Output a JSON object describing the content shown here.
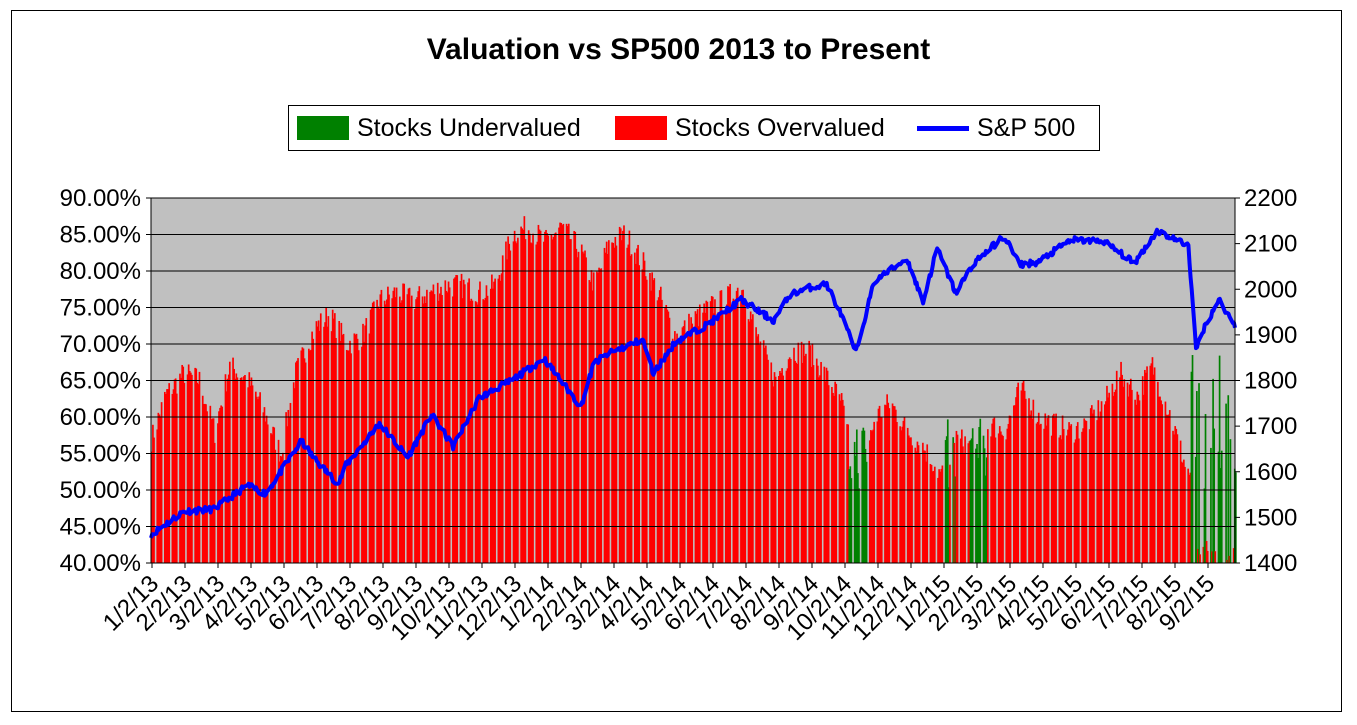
{
  "chart_data": {
    "type": "bar",
    "title": "Valuation vs SP500 2013 to Present",
    "legend_position": "top",
    "grid": true,
    "colors": {
      "undervalued": "#008000",
      "overvalued": "#ff0000",
      "sp500": "#0000ff",
      "plot_background": "#c0c0c0",
      "gridline": "#000000"
    },
    "series": [
      {
        "name": "Stocks Undervalued",
        "axis": "left",
        "kind": "bar"
      },
      {
        "name": "Stocks Overvalued",
        "axis": "left",
        "kind": "bar"
      },
      {
        "name": "S&P 500",
        "axis": "right",
        "kind": "line"
      }
    ],
    "y_left": {
      "range": [
        0.4,
        0.9
      ],
      "tick_labels": [
        "90.00%",
        "85.00%",
        "80.00%",
        "75.00%",
        "70.00%",
        "65.00%",
        "60.00%",
        "55.00%",
        "50.00%",
        "45.00%",
        "40.00%"
      ],
      "tick_values": [
        0.9,
        0.85,
        0.8,
        0.75,
        0.7,
        0.65,
        0.6,
        0.55,
        0.5,
        0.45,
        0.4
      ]
    },
    "y_right": {
      "range": [
        1400,
        2200
      ],
      "tick_labels": [
        "2200",
        "2100",
        "2000",
        "1900",
        "1800",
        "1700",
        "1600",
        "1500",
        "1400"
      ],
      "tick_values": [
        2200,
        2100,
        2000,
        1900,
        1800,
        1700,
        1600,
        1500,
        1400
      ]
    },
    "x_tick_labels": [
      "1/2/13",
      "2/2/13",
      "3/2/13",
      "4/2/13",
      "5/2/13",
      "6/2/13",
      "7/2/13",
      "8/2/13",
      "9/2/13",
      "10/2/13",
      "11/2/13",
      "12/2/13",
      "1/2/14",
      "2/2/14",
      "3/2/14",
      "4/2/14",
      "5/2/14",
      "6/2/14",
      "7/2/14",
      "8/2/14",
      "9/2/14",
      "10/2/14",
      "11/2/14",
      "12/2/14",
      "1/2/15",
      "2/2/15",
      "3/2/15",
      "4/2/15",
      "5/2/15",
      "6/2/15",
      "7/2/15",
      "8/2/15",
      "9/2/15"
    ],
    "x_domain": {
      "start": "2013-01-02",
      "end": "2015-09-30"
    },
    "valuation": {
      "dates": [
        "2013-01-02",
        "2013-01-15",
        "2013-02-01",
        "2013-02-15",
        "2013-03-01",
        "2013-03-15",
        "2013-04-01",
        "2013-04-15",
        "2013-05-01",
        "2013-05-15",
        "2013-06-01",
        "2013-06-15",
        "2013-07-01",
        "2013-07-15",
        "2013-08-01",
        "2013-08-15",
        "2013-09-01",
        "2013-09-15",
        "2013-10-01",
        "2013-10-15",
        "2013-11-01",
        "2013-11-15",
        "2013-12-01",
        "2013-12-15",
        "2014-01-01",
        "2014-01-15",
        "2014-02-01",
        "2014-02-15",
        "2014-03-01",
        "2014-03-15",
        "2014-04-01",
        "2014-04-15",
        "2014-05-01",
        "2014-05-15",
        "2014-06-01",
        "2014-06-15",
        "2014-07-01",
        "2014-07-15",
        "2014-08-01",
        "2014-08-15",
        "2014-09-01",
        "2014-09-15",
        "2014-10-01",
        "2014-10-10",
        "2014-10-20",
        "2014-11-01",
        "2014-11-15",
        "2014-12-01",
        "2014-12-15",
        "2015-01-01",
        "2015-01-15",
        "2015-02-01",
        "2015-02-15",
        "2015-03-01",
        "2015-03-15",
        "2015-04-01",
        "2015-04-15",
        "2015-05-01",
        "2015-05-15",
        "2015-06-01",
        "2015-06-15",
        "2015-07-01",
        "2015-07-15",
        "2015-08-01",
        "2015-08-15",
        "2015-08-25",
        "2015-09-01",
        "2015-09-15",
        "2015-09-30"
      ],
      "values": [
        0.57,
        0.63,
        0.66,
        0.65,
        0.58,
        0.67,
        0.65,
        0.61,
        0.55,
        0.66,
        0.72,
        0.74,
        0.7,
        0.71,
        0.76,
        0.77,
        0.76,
        0.77,
        0.78,
        0.78,
        0.77,
        0.78,
        0.85,
        0.86,
        0.84,
        0.86,
        0.83,
        0.78,
        0.84,
        0.85,
        0.81,
        0.77,
        0.71,
        0.73,
        0.75,
        0.76,
        0.78,
        0.71,
        0.65,
        0.69,
        0.69,
        0.66,
        0.62,
        0.55,
        0.52,
        0.6,
        0.62,
        0.58,
        0.56,
        0.52,
        0.57,
        0.56,
        0.59,
        0.58,
        0.64,
        0.6,
        0.59,
        0.58,
        0.59,
        0.62,
        0.66,
        0.63,
        0.67,
        0.6,
        0.53,
        0.51,
        0.47,
        0.42,
        0.41
      ]
    },
    "sp500": {
      "dates": [
        "2013-01-02",
        "2013-02-01",
        "2013-03-01",
        "2013-04-01",
        "2013-04-18",
        "2013-05-01",
        "2013-05-21",
        "2013-06-01",
        "2013-06-24",
        "2013-07-01",
        "2013-08-01",
        "2013-08-27",
        "2013-09-18",
        "2013-10-08",
        "2013-11-01",
        "2013-12-01",
        "2013-12-31",
        "2014-02-03",
        "2014-02-15",
        "2014-03-01",
        "2014-04-01",
        "2014-04-11",
        "2014-05-01",
        "2014-06-01",
        "2014-07-01",
        "2014-07-31",
        "2014-08-15",
        "2014-09-01",
        "2014-09-18",
        "2014-10-01",
        "2014-10-15",
        "2014-11-01",
        "2014-12-01",
        "2014-12-16",
        "2014-12-29",
        "2015-01-15",
        "2015-02-01",
        "2015-03-01",
        "2015-03-15",
        "2015-04-01",
        "2015-05-01",
        "2015-06-01",
        "2015-06-29",
        "2015-07-20",
        "2015-08-18",
        "2015-08-25",
        "2015-09-01",
        "2015-09-15",
        "2015-09-30"
      ],
      "values": [
        1462,
        1513,
        1518,
        1570,
        1552,
        1597,
        1667,
        1631,
        1573,
        1614,
        1706,
        1631,
        1725,
        1655,
        1762,
        1800,
        1848,
        1742,
        1838,
        1859,
        1890,
        1815,
        1884,
        1924,
        1977,
        1931,
        1988,
        2003,
        2011,
        1946,
        1862,
        2018,
        2067,
        1972,
        2090,
        1992,
        2058,
        2117,
        2054,
        2059,
        2108,
        2105,
        2057,
        2128,
        2096,
        1868,
        1913,
        1978,
        1920
      ]
    }
  }
}
